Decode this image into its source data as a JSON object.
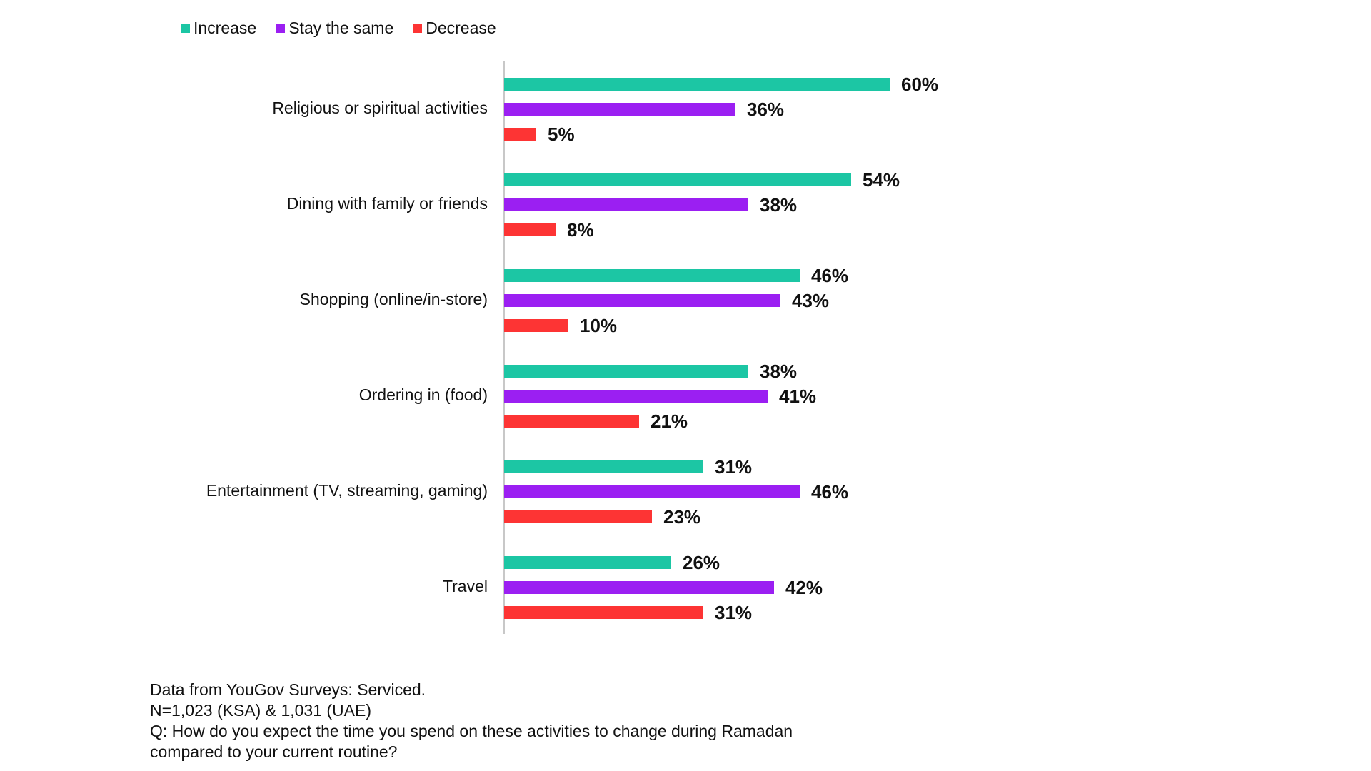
{
  "chart_data": {
    "type": "bar",
    "orientation": "horizontal",
    "categories": [
      "Religious or spiritual activities",
      "Dining with family or friends",
      "Shopping (online/in-store)",
      "Ordering in (food)",
      "Entertainment (TV, streaming, gaming)",
      "Travel"
    ],
    "series": [
      {
        "name": "Increase",
        "color": "#1cc6a4",
        "values": [
          60,
          54,
          46,
          38,
          31,
          26
        ]
      },
      {
        "name": "Stay the same",
        "color": "#9b1ff2",
        "values": [
          36,
          38,
          43,
          41,
          46,
          42
        ]
      },
      {
        "name": "Decrease",
        "color": "#fd3434",
        "values": [
          5,
          8,
          10,
          21,
          23,
          31
        ]
      }
    ],
    "value_suffix": "%",
    "xlim": [
      0,
      100
    ],
    "grid": false,
    "legend_position": "top-left"
  },
  "footnote": {
    "lines": [
      "Data from YouGov Surveys: Serviced.",
      "N=1,023 (KSA) & 1,031 (UAE)",
      "Q: How do you expect the time you spend on these activities to change during Ramadan",
      "compared to your current routine?"
    ]
  }
}
